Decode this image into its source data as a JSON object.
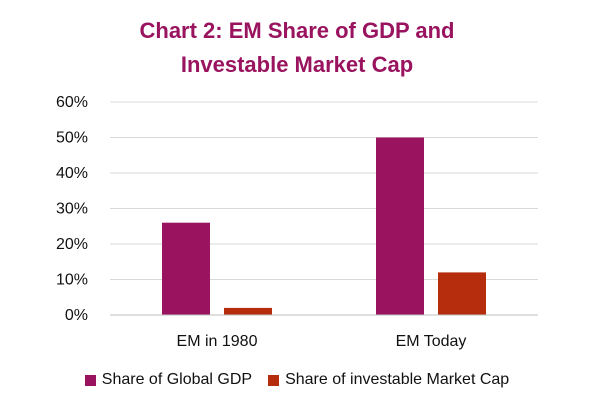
{
  "title_lines": [
    "Chart 2: EM Share of GDP and",
    "Investable Market Cap"
  ],
  "colors": {
    "title": "#99135f",
    "gdp": "#99135f",
    "market_cap": "#b52d0c",
    "grid": "#d9d9d9"
  },
  "chart_data": {
    "type": "bar",
    "title": "Chart 2: EM Share of GDP and Investable Market Cap",
    "categories": [
      "EM in 1980",
      "EM Today"
    ],
    "series": [
      {
        "name": "Share of Global GDP",
        "values": [
          0.26,
          0.5
        ]
      },
      {
        "name": "Share of investable Market Cap",
        "values": [
          0.02,
          0.12
        ]
      }
    ],
    "yticks": [
      "0%",
      "10%",
      "20%",
      "30%",
      "40%",
      "50%",
      "60%"
    ],
    "ylim": [
      0,
      0.6
    ],
    "grid": true,
    "legend_position": "bottom"
  }
}
